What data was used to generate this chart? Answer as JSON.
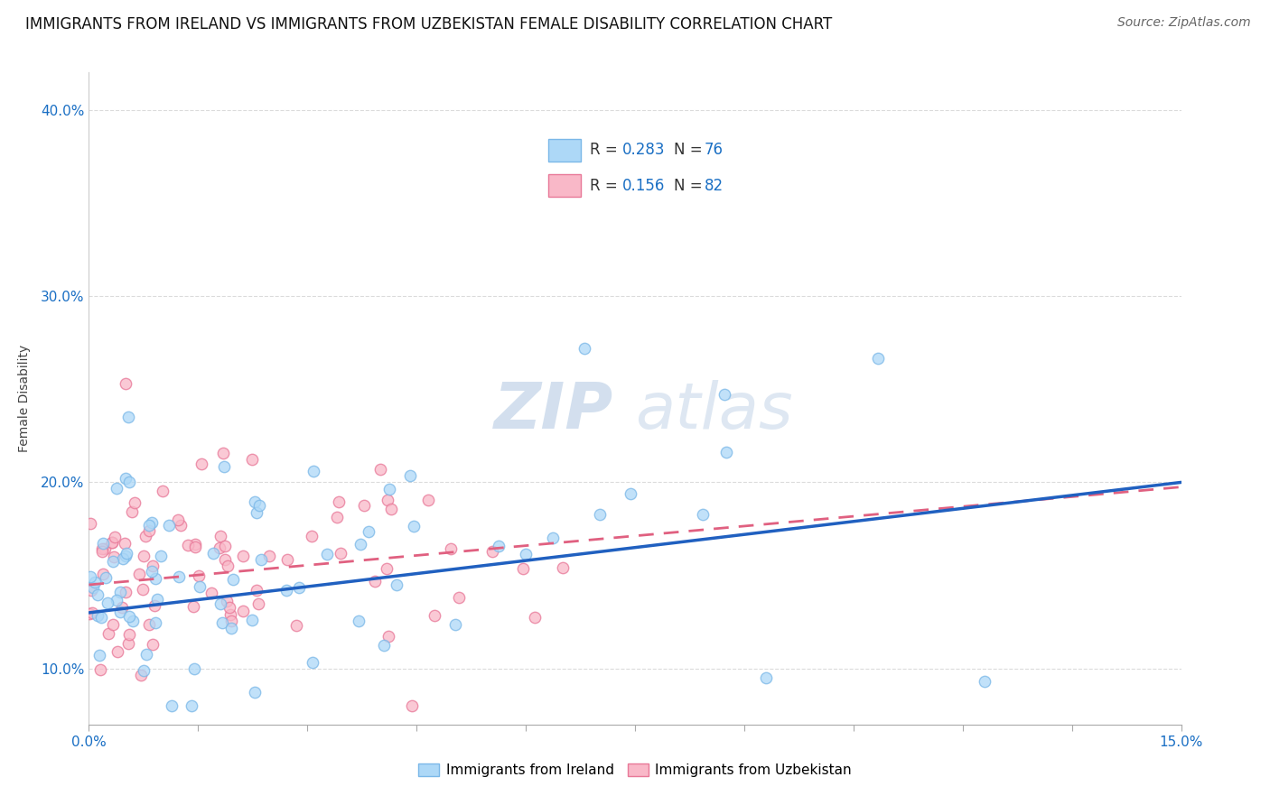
{
  "title": "IMMIGRANTS FROM IRELAND VS IMMIGRANTS FROM UZBEKISTAN FEMALE DISABILITY CORRELATION CHART",
  "source": "Source: ZipAtlas.com",
  "ylabel": "Female Disability",
  "xlim": [
    0.0,
    0.15
  ],
  "ylim": [
    0.07,
    0.42
  ],
  "yticks": [
    0.1,
    0.2,
    0.3,
    0.4
  ],
  "ytick_labels": [
    "10.0%",
    "20.0%",
    "30.0%",
    "40.0%"
  ],
  "xtick_labels": [
    "0.0%",
    "",
    "",
    "",
    "",
    "",
    "",
    "",
    "",
    "",
    "15.0%"
  ],
  "ireland_color": "#ADD8F7",
  "ireland_edge": "#7BB8E8",
  "uzbekistan_color": "#F9B8C8",
  "uzbekistan_edge": "#E87898",
  "ireland_R": 0.283,
  "ireland_N": 76,
  "uzbekistan_R": 0.156,
  "uzbekistan_N": 82,
  "ireland_line_color": "#2060C0",
  "uzbekistan_line_color": "#E06080",
  "watermark_zip": "ZIP",
  "watermark_atlas": "atlas",
  "legend_label_color": "#1a6fc4",
  "title_fontsize": 12,
  "source_fontsize": 10,
  "tick_fontsize": 11
}
